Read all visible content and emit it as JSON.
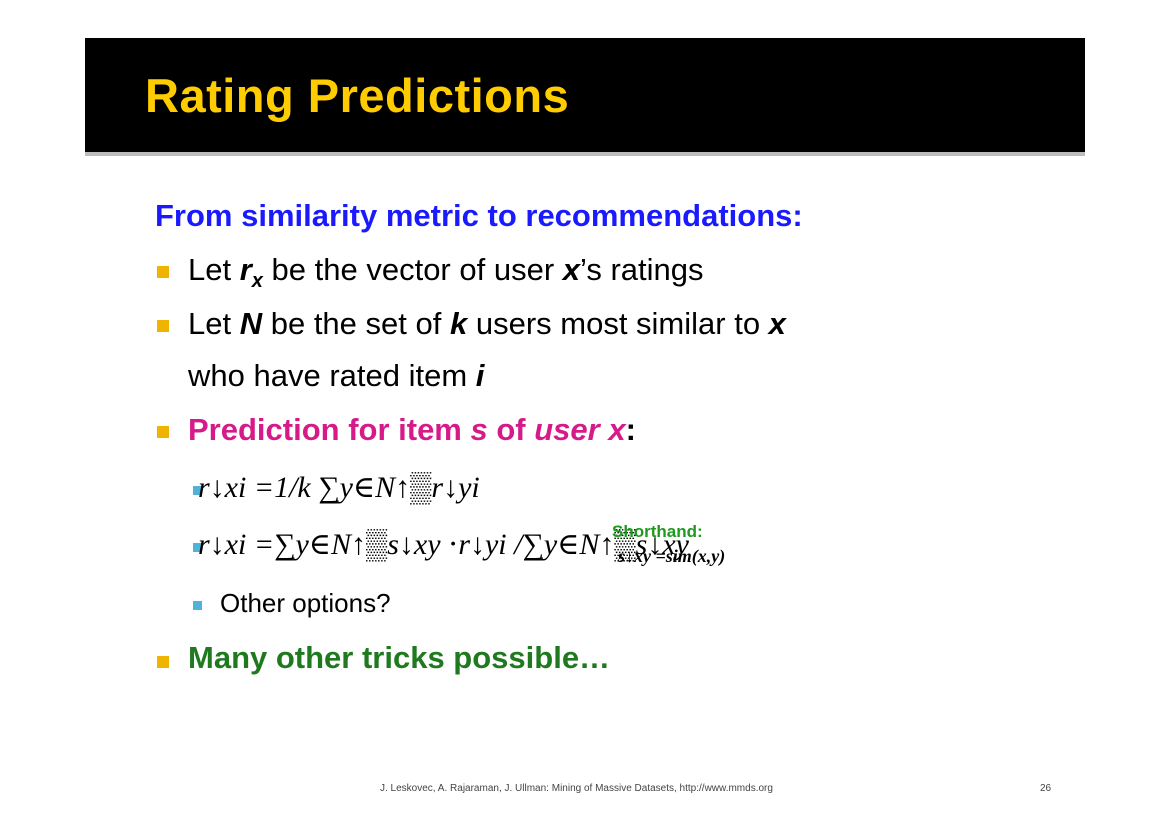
{
  "title": "Rating Predictions",
  "heading": "From similarity metric to recommendations:",
  "bullet1": {
    "pre": "Let ",
    "var": "r",
    "sub": "x",
    "post1": " be the vector of user ",
    "var2": "x",
    "post2": "’s ratings"
  },
  "bullet2": {
    "pre": "Let ",
    "var": "N",
    "mid1": " be the set of ",
    "var2": "k",
    "mid2": " users most similar to ",
    "var3": "x",
    "line2_pre": "who have rated item ",
    "line2_var": "i"
  },
  "bullet3": {
    "pre": "Prediction for item ",
    "var": "s",
    "mid": " of ",
    "var2": "user x",
    "post": ":"
  },
  "formula1": "r↓xi =1/k  ∑y∈N↑▒r↓yi",
  "formula2": "r↓xi =∑y∈N↑▒s↓xy ⋅r↓yi /∑y∈N↑▒s↓xy",
  "shorthand": {
    "label": "Shorthand:",
    "formula": "s↓xy =sim(x,y)"
  },
  "sub3": "Other options?",
  "bullet4": "Many other tricks possible…",
  "footer": "J. Leskovec, A. Rajaraman, J. Ullman: Mining of Massive Datasets, http://www.mmds.org",
  "page_number": "26",
  "colors": {
    "title": "#ffcc00",
    "heading": "#1a1aff",
    "pink": "#d61a8a",
    "green": "#1f7a1f",
    "bullet": "#f0b400",
    "sub_bullet": "#4fb3d9"
  }
}
